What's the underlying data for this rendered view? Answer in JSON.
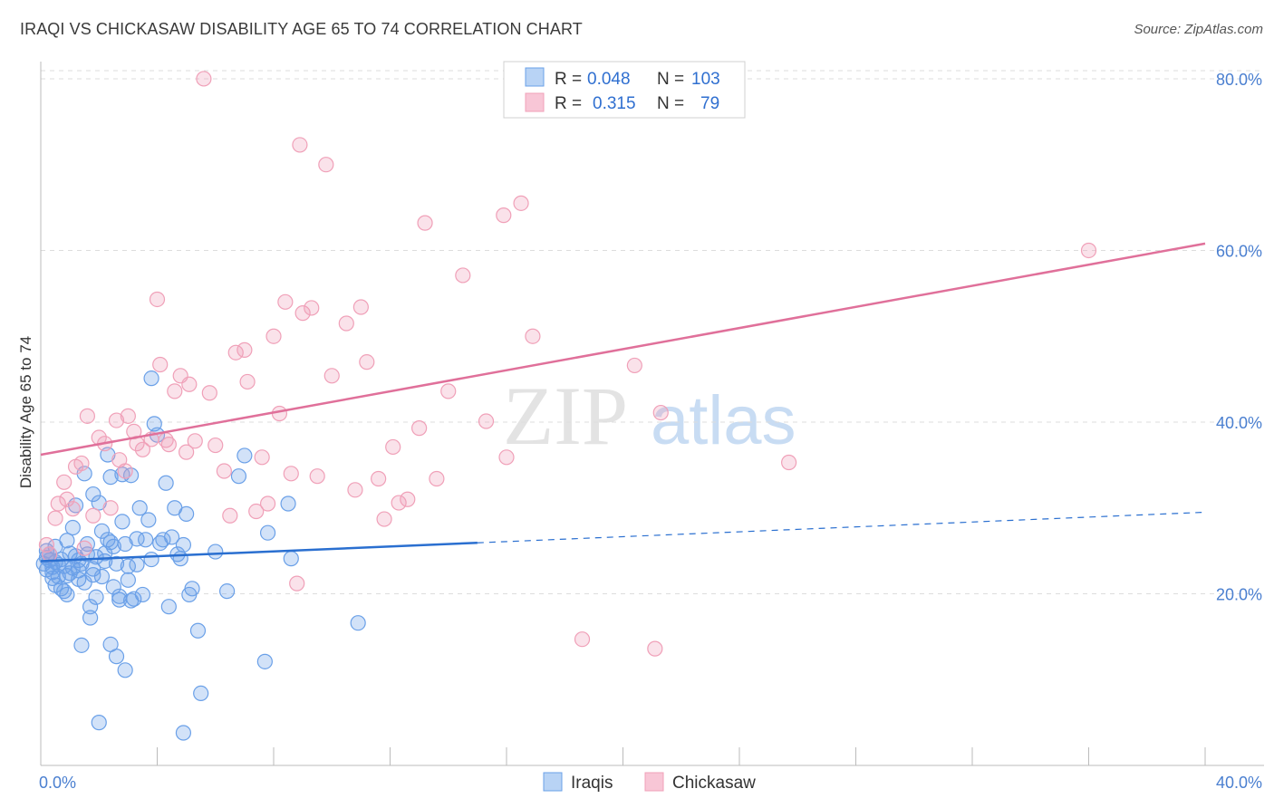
{
  "title": "IRAQI VS CHICKASAW DISABILITY AGE 65 TO 74 CORRELATION CHART",
  "source": "Source: ZipAtlas.com",
  "watermark": {
    "part1": "ZIP",
    "part2": "atlas"
  },
  "colors": {
    "iraqi": "#6aa0e8",
    "iraqi_line": "#2a6fd0",
    "chickasaw": "#f0a0b8",
    "chickasaw_line": "#e0709a",
    "tick_label": "#4a7fd0",
    "grid": "#dddddd"
  },
  "legend": {
    "rows": [
      {
        "r_label": "R =",
        "r_value": "0.048",
        "n_label": "N =",
        "n_value": "103"
      },
      {
        "r_label": "R =",
        "r_value": "0.315",
        "n_label": "N =",
        "n_value": "79"
      }
    ]
  },
  "bottom_legend": [
    "Iraqis",
    "Chickasaw"
  ],
  "chart_data": {
    "type": "scatter",
    "title": "IRAQI VS CHICKASAW DISABILITY AGE 65 TO 74 CORRELATION CHART",
    "xlabel": "",
    "ylabel": "Disability Age 65 to 74",
    "xlim": [
      0,
      40
    ],
    "ylim": [
      0,
      82
    ],
    "x_tick_labels": [
      "0.0%",
      "40.0%"
    ],
    "y_ticks": [
      20,
      40,
      60,
      80
    ],
    "y_tick_labels": [
      "20.0%",
      "40.0%",
      "60.0%",
      "80.0%"
    ],
    "series": [
      {
        "name": "Iraqis",
        "trend": {
          "x0": 0,
          "y0": 23.8,
          "x1": 40,
          "y1": 29.5,
          "solid_until_x": 15
        },
        "points": [
          [
            0.1,
            23.5
          ],
          [
            0.2,
            24.2
          ],
          [
            0.2,
            22.8
          ],
          [
            0.3,
            23.9
          ],
          [
            0.3,
            24.6
          ],
          [
            0.4,
            22.5
          ],
          [
            0.4,
            23.1
          ],
          [
            0.5,
            21.0
          ],
          [
            0.5,
            25.5
          ],
          [
            0.6,
            23.4
          ],
          [
            0.6,
            22.0
          ],
          [
            0.7,
            20.6
          ],
          [
            0.7,
            24.0
          ],
          [
            0.8,
            23.2
          ],
          [
            0.8,
            20.3
          ],
          [
            0.9,
            19.9
          ],
          [
            0.9,
            26.2
          ],
          [
            1.0,
            22.4
          ],
          [
            1.0,
            24.7
          ],
          [
            1.1,
            23.0
          ],
          [
            1.1,
            27.7
          ],
          [
            1.2,
            24.4
          ],
          [
            1.2,
            30.3
          ],
          [
            1.3,
            22.7
          ],
          [
            1.3,
            21.7
          ],
          [
            1.4,
            23.5
          ],
          [
            1.4,
            14.0
          ],
          [
            1.5,
            34.0
          ],
          [
            1.5,
            21.3
          ],
          [
            1.6,
            24.6
          ],
          [
            1.6,
            25.8
          ],
          [
            1.7,
            18.5
          ],
          [
            1.7,
            17.2
          ],
          [
            1.8,
            31.6
          ],
          [
            1.8,
            22.9
          ],
          [
            1.9,
            19.6
          ],
          [
            1.9,
            24.3
          ],
          [
            2.0,
            30.6
          ],
          [
            2.0,
            5.0
          ],
          [
            2.1,
            27.3
          ],
          [
            2.1,
            22.0
          ],
          [
            2.2,
            23.8
          ],
          [
            2.2,
            24.7
          ],
          [
            2.3,
            36.2
          ],
          [
            2.3,
            26.3
          ],
          [
            2.4,
            14.1
          ],
          [
            2.4,
            33.6
          ],
          [
            2.5,
            25.5
          ],
          [
            2.5,
            20.8
          ],
          [
            2.6,
            12.7
          ],
          [
            2.6,
            23.5
          ],
          [
            2.7,
            19.7
          ],
          [
            2.7,
            19.3
          ],
          [
            2.8,
            28.4
          ],
          [
            2.8,
            33.9
          ],
          [
            2.9,
            11.1
          ],
          [
            2.9,
            25.8
          ],
          [
            3.0,
            21.6
          ],
          [
            3.0,
            23.2
          ],
          [
            3.1,
            33.8
          ],
          [
            3.1,
            19.2
          ],
          [
            3.2,
            19.4
          ],
          [
            3.3,
            26.4
          ],
          [
            3.4,
            30.0
          ],
          [
            3.5,
            19.9
          ],
          [
            3.6,
            26.3
          ],
          [
            3.7,
            28.6
          ],
          [
            3.8,
            45.1
          ],
          [
            3.8,
            24.0
          ],
          [
            3.9,
            39.8
          ],
          [
            4.0,
            38.5
          ],
          [
            4.1,
            25.9
          ],
          [
            4.2,
            26.3
          ],
          [
            4.3,
            32.9
          ],
          [
            4.4,
            18.5
          ],
          [
            4.5,
            26.6
          ],
          [
            4.6,
            30.0
          ],
          [
            4.7,
            24.6
          ],
          [
            4.9,
            25.7
          ],
          [
            4.9,
            3.8
          ],
          [
            5.0,
            29.3
          ],
          [
            5.1,
            19.9
          ],
          [
            5.2,
            20.6
          ],
          [
            5.4,
            15.7
          ],
          [
            5.5,
            8.4
          ],
          [
            6.0,
            24.9
          ],
          [
            6.4,
            20.3
          ],
          [
            6.8,
            33.7
          ],
          [
            7.0,
            36.1
          ],
          [
            7.7,
            12.1
          ],
          [
            7.8,
            27.1
          ],
          [
            8.5,
            30.5
          ],
          [
            8.6,
            24.1
          ],
          [
            10.9,
            16.6
          ],
          [
            0.2,
            25.0
          ],
          [
            0.4,
            21.8
          ],
          [
            0.5,
            23.7
          ],
          [
            0.9,
            22.1
          ],
          [
            1.3,
            23.9
          ],
          [
            1.8,
            22.2
          ],
          [
            2.4,
            26.0
          ],
          [
            3.3,
            23.4
          ],
          [
            4.8,
            24.1
          ]
        ]
      },
      {
        "name": "Chickasaw",
        "trend": {
          "x0": 0,
          "y0": 36.2,
          "x1": 40,
          "y1": 60.8
        },
        "points": [
          [
            0.2,
            25.7
          ],
          [
            0.3,
            24.6
          ],
          [
            0.5,
            28.8
          ],
          [
            0.6,
            30.5
          ],
          [
            0.8,
            33.0
          ],
          [
            0.9,
            31.0
          ],
          [
            1.1,
            29.9
          ],
          [
            1.2,
            34.8
          ],
          [
            1.4,
            35.2
          ],
          [
            1.5,
            25.3
          ],
          [
            1.6,
            40.7
          ],
          [
            1.8,
            29.1
          ],
          [
            2.0,
            38.2
          ],
          [
            2.2,
            37.5
          ],
          [
            2.4,
            30.0
          ],
          [
            2.6,
            40.2
          ],
          [
            2.7,
            35.6
          ],
          [
            2.9,
            34.3
          ],
          [
            3.0,
            40.7
          ],
          [
            3.2,
            38.9
          ],
          [
            3.3,
            37.5
          ],
          [
            3.5,
            36.8
          ],
          [
            3.8,
            38.0
          ],
          [
            4.0,
            54.3
          ],
          [
            4.1,
            46.7
          ],
          [
            4.3,
            37.9
          ],
          [
            4.4,
            37.4
          ],
          [
            4.6,
            43.6
          ],
          [
            4.8,
            45.4
          ],
          [
            5.0,
            36.5
          ],
          [
            5.1,
            44.4
          ],
          [
            5.3,
            37.8
          ],
          [
            5.6,
            80.0
          ],
          [
            5.8,
            43.4
          ],
          [
            6.0,
            37.3
          ],
          [
            6.3,
            34.3
          ],
          [
            6.5,
            29.1
          ],
          [
            6.7,
            48.1
          ],
          [
            7.0,
            48.4
          ],
          [
            7.1,
            44.7
          ],
          [
            7.4,
            29.6
          ],
          [
            7.6,
            35.9
          ],
          [
            7.8,
            30.5
          ],
          [
            8.0,
            50.0
          ],
          [
            8.2,
            41.0
          ],
          [
            8.4,
            54.0
          ],
          [
            8.6,
            34.0
          ],
          [
            8.8,
            21.2
          ],
          [
            8.9,
            72.3
          ],
          [
            9.0,
            52.7
          ],
          [
            9.3,
            53.3
          ],
          [
            9.5,
            33.7
          ],
          [
            9.8,
            70.0
          ],
          [
            10.0,
            45.4
          ],
          [
            10.5,
            51.5
          ],
          [
            10.8,
            32.1
          ],
          [
            11.0,
            53.4
          ],
          [
            11.2,
            47.0
          ],
          [
            11.6,
            33.4
          ],
          [
            11.8,
            28.7
          ],
          [
            12.1,
            37.1
          ],
          [
            12.3,
            30.6
          ],
          [
            12.6,
            31.0
          ],
          [
            13.0,
            39.3
          ],
          [
            13.2,
            63.2
          ],
          [
            13.6,
            33.4
          ],
          [
            14.0,
            43.6
          ],
          [
            14.5,
            57.1
          ],
          [
            15.3,
            40.1
          ],
          [
            15.9,
            64.1
          ],
          [
            16.0,
            35.9
          ],
          [
            16.5,
            65.5
          ],
          [
            16.9,
            50.0
          ],
          [
            18.6,
            14.7
          ],
          [
            20.4,
            46.6
          ],
          [
            21.1,
            13.6
          ],
          [
            21.3,
            41.1
          ],
          [
            25.7,
            35.3
          ],
          [
            36.0,
            60.0
          ]
        ]
      }
    ]
  }
}
